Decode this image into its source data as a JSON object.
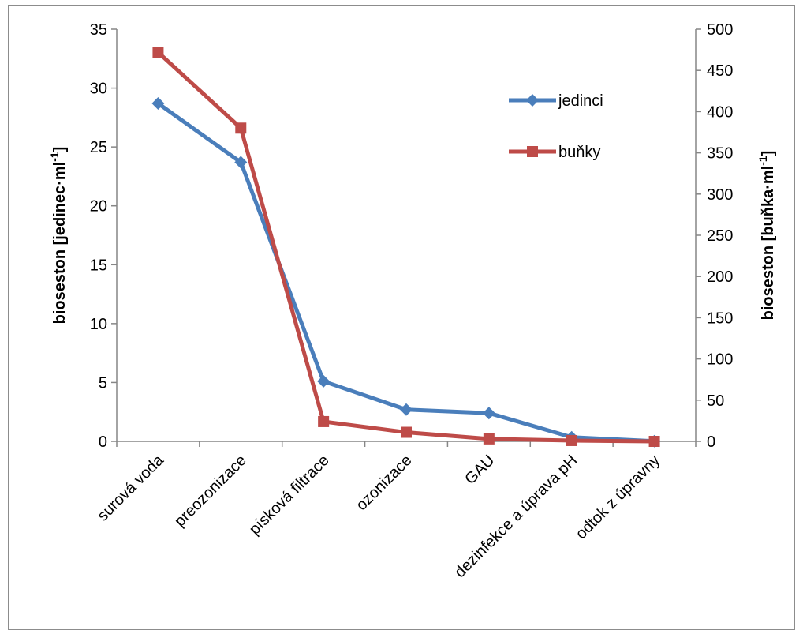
{
  "chart_data": {
    "type": "line",
    "categories": [
      "surová voda",
      "preozonizace",
      "písková filtrace",
      "ozonizace",
      "GAU",
      "dezinfekce a úprava pH",
      "odtok z úpravny"
    ],
    "series": [
      {
        "name": "jedinci",
        "axis": "left",
        "color": "#4a7ebb",
        "marker": "diamond",
        "values": [
          28.7,
          23.7,
          5.1,
          2.7,
          2.4,
          0.35,
          0.02
        ]
      },
      {
        "name": "buňky",
        "axis": "right",
        "color": "#be4b48",
        "marker": "square",
        "values": [
          472,
          380,
          24,
          11,
          3,
          1,
          0
        ]
      }
    ],
    "y_left": {
      "label": "bioseston [jedinec·ml",
      "label_sup": "-1",
      "label_end": "]",
      "min": 0,
      "max": 35,
      "ticks": [
        "0",
        "5",
        "10",
        "15",
        "20",
        "25",
        "30",
        "35"
      ]
    },
    "y_right": {
      "label": "bioseston [buňka·ml",
      "label_sup": "-1",
      "label_end": "]",
      "min": 0,
      "max": 500,
      "ticks": [
        "0",
        "50",
        "100",
        "150",
        "200",
        "250",
        "300",
        "350",
        "400",
        "450",
        "500"
      ]
    },
    "legend_position": "top-right",
    "grid": false
  }
}
